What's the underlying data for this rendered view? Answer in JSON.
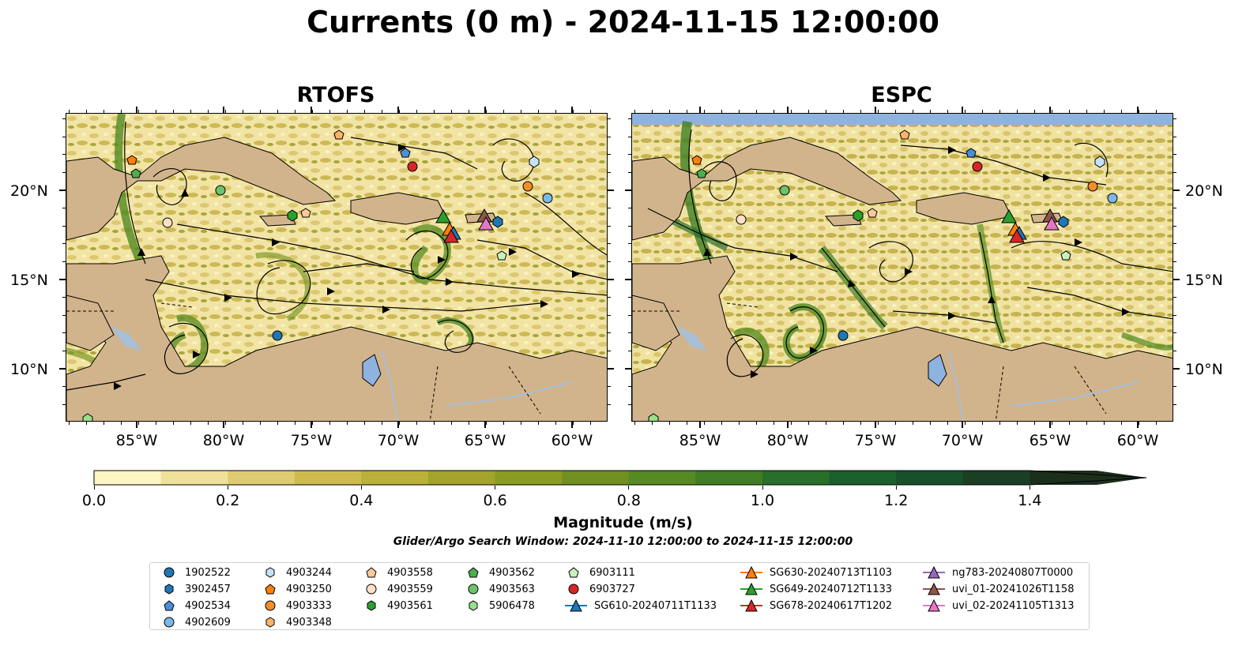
{
  "title": "Currents (0 m) - 2024-11-15 12:00:00",
  "panels": [
    {
      "title": "RTOFS"
    },
    {
      "title": "ESPC"
    }
  ],
  "lat_labels": [
    "20°N",
    "15°N",
    "10°N"
  ],
  "lon_labels": [
    "85°W",
    "80°W",
    "75°W",
    "70°W",
    "65°W",
    "60°W"
  ],
  "colorbar": {
    "label": "Magnitude (m/s)",
    "ticks": [
      "0.0",
      "0.2",
      "0.4",
      "0.6",
      "0.8",
      "1.0",
      "1.2",
      "1.4"
    ],
    "min": 0.0,
    "max": 1.5,
    "step": 0.1,
    "colors": [
      "#fdf5c2",
      "#efe19a",
      "#dfcc72",
      "#cfba4e",
      "#bbb03a",
      "#a4a32c",
      "#8a9c22",
      "#709020",
      "#568a22",
      "#3f7e24",
      "#286f2a",
      "#1b602c",
      "#17502a",
      "#1a3f25",
      "#1c2f1d"
    ]
  },
  "search_window": "Glider/Argo Search Window: 2024-11-10 12:00:00 to 2024-11-15 12:00:00",
  "colors": {
    "land": "#d2b48c",
    "lake": "#8fb3e0",
    "river": "#a7bfd8",
    "ocean_low": "#fdf5c2"
  },
  "legend": [
    {
      "label": "1902522",
      "marker": "circle",
      "color": "#1f77b4"
    },
    {
      "label": "3902457",
      "marker": "hexagon",
      "color": "#1f77b4"
    },
    {
      "label": "4902534",
      "marker": "pentagon",
      "color": "#4a90d9"
    },
    {
      "label": "4902609",
      "marker": "circle",
      "color": "#7ab8e8"
    },
    {
      "label": "4903244",
      "marker": "hexagon",
      "color": "#c6e2f7"
    },
    {
      "label": "4903250",
      "marker": "pentagon",
      "color": "#ff7f0e"
    },
    {
      "label": "4903333",
      "marker": "circle",
      "color": "#f28e2b"
    },
    {
      "label": "4903348",
      "marker": "hexagon",
      "color": "#ffb26b"
    },
    {
      "label": "4903558",
      "marker": "pentagon",
      "color": "#ffc899"
    },
    {
      "label": "4903559",
      "marker": "circle",
      "color": "#fde0c5"
    },
    {
      "label": "4903561",
      "marker": "hexagon",
      "color": "#2ca02c"
    },
    {
      "label": "4903562",
      "marker": "pentagon",
      "color": "#4caf50"
    },
    {
      "label": "4903563",
      "marker": "circle",
      "color": "#6cc36c"
    },
    {
      "label": "5906478",
      "marker": "hexagon",
      "color": "#98df8a"
    },
    {
      "label": "6903111",
      "marker": "pentagon",
      "color": "#c8f0c0"
    },
    {
      "label": "6903727",
      "marker": "circle",
      "color": "#d62728"
    },
    {
      "label": "SG610-20240711T1133",
      "marker": "triangle-line",
      "color": "#1f77b4"
    },
    {
      "label": "SG630-20240713T1103",
      "marker": "triangle-line",
      "color": "#ff7f0e"
    },
    {
      "label": "SG649-20240712T1133",
      "marker": "triangle-line",
      "color": "#2ca02c"
    },
    {
      "label": "SG678-20240617T1202",
      "marker": "triangle-line",
      "color": "#d62728"
    },
    {
      "label": "ng783-20240807T0000",
      "marker": "triangle-line",
      "color": "#9467bd"
    },
    {
      "label": "uvi_01-20241026T1158",
      "marker": "triangle-line",
      "color": "#8c564b"
    },
    {
      "label": "uvi_02-20241105T1313",
      "marker": "triangle-line",
      "color": "#e377c2"
    }
  ]
}
